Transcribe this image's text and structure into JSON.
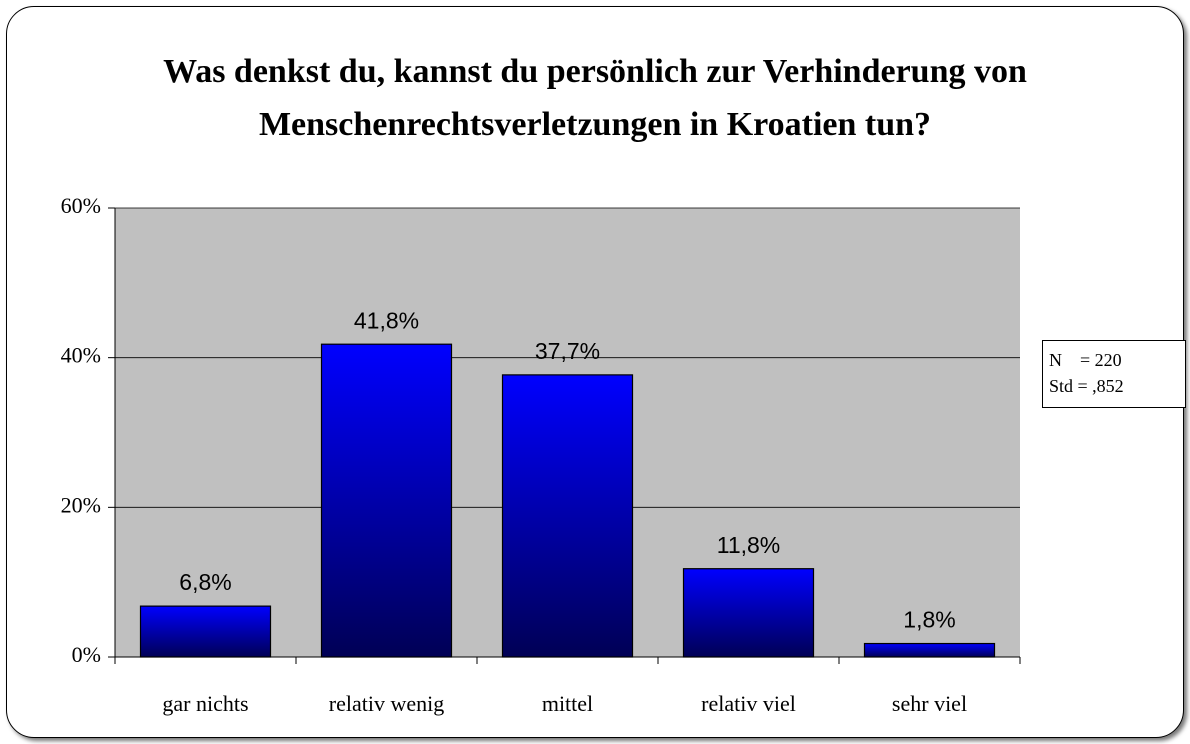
{
  "chart_data": {
    "type": "bar",
    "title": "Was denkst du, kannst du persönlich zur Verhinderung von Menschenrechtsverletzungen in Kroatien tun?",
    "categories": [
      "gar nichts",
      "relativ wenig",
      "mittel",
      "relativ viel",
      "sehr viel"
    ],
    "values": [
      6.8,
      41.8,
      37.7,
      11.8,
      1.8
    ],
    "value_labels": [
      "6,8%",
      "41,8%",
      "37,7%",
      "11,8%",
      "1,8%"
    ],
    "color": "#0000ff",
    "ylim": [
      0,
      60
    ],
    "yticks": [
      {
        "value": 0,
        "label": "0%"
      },
      {
        "value": 20,
        "label": "20%"
      },
      {
        "value": 40,
        "label": "40%"
      },
      {
        "value": 60,
        "label": "60%"
      }
    ],
    "grid": true,
    "stats": [
      "N    = 220",
      "Std = ,852"
    ]
  }
}
